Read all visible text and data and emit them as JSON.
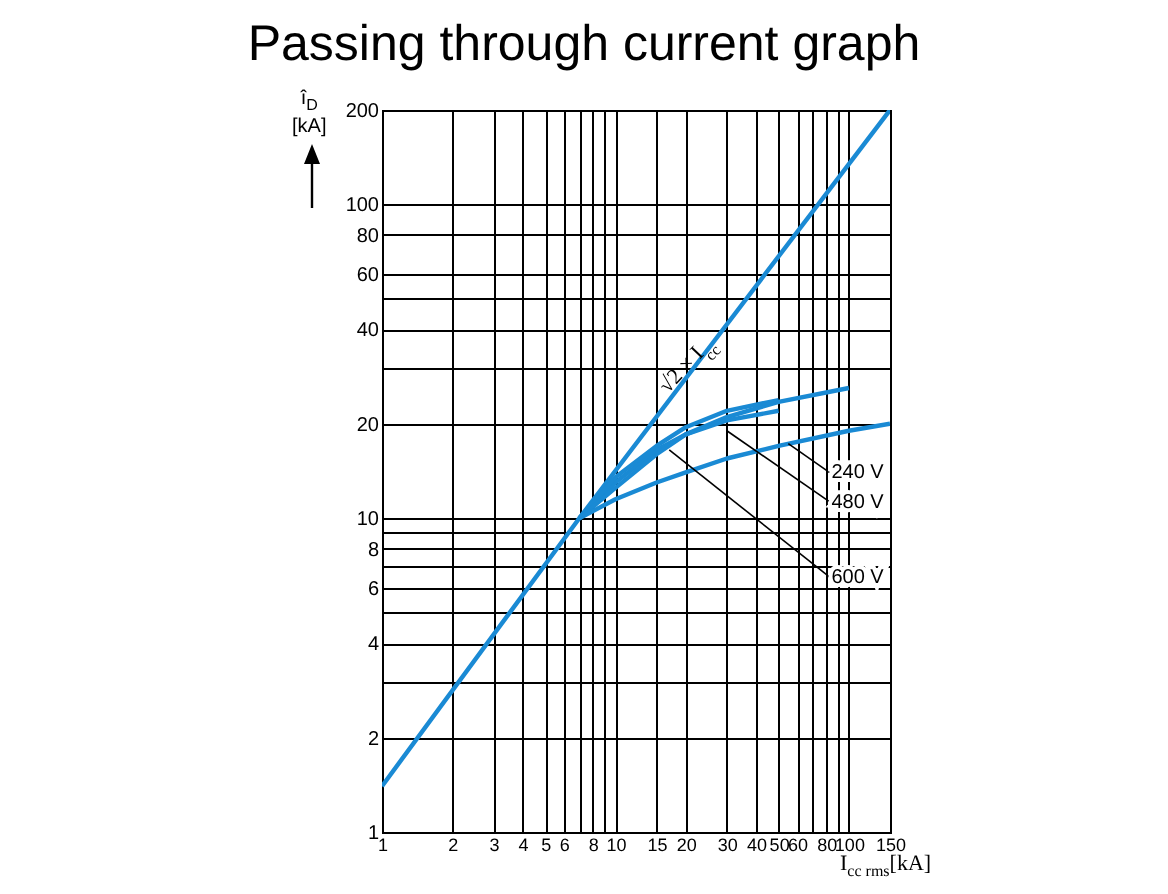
{
  "chart_data": {
    "type": "line",
    "title": "Passing through current graph",
    "xlabel": "I$_{cc rms}$[kA]",
    "ylabel": "î$_{D}$ [kA]",
    "log": "xy",
    "grid": true,
    "line_style": "solid",
    "marker": "none",
    "xlim": [
      1,
      150
    ],
    "ylim": [
      1,
      200
    ],
    "xticks": [
      1,
      2,
      3,
      4,
      5,
      6,
      {
        "value": 7,
        "label": null
      },
      8,
      {
        "value": 9,
        "label": null
      },
      10,
      15,
      20,
      30,
      40,
      50,
      60,
      {
        "value": 70,
        "label": null
      },
      80,
      {
        "value": 90,
        "label": null
      },
      100,
      150
    ],
    "yticks": [
      1,
      2,
      {
        "value": 3,
        "label": null
      },
      4,
      {
        "value": 5,
        "label": null
      },
      6,
      {
        "value": 7,
        "label": null
      },
      8,
      {
        "value": 9,
        "label": null
      },
      10,
      20,
      {
        "value": 30,
        "label": null
      },
      40,
      {
        "value": 50,
        "label": null
      },
      60,
      80,
      100,
      200
    ],
    "series": [
      {
        "color": "#1a8ad4",
        "x": [
          1,
          7,
          150
        ],
        "values": [
          1.4,
          10,
          200
        ]
      },
      {
        "color": "#1a8ad4",
        "x": [
          7,
          10,
          15,
          20,
          30,
          50,
          100
        ],
        "values": [
          10,
          13,
          16.5,
          18.5,
          21,
          23.5,
          26
        ]
      },
      {
        "color": "#1a8ad4",
        "x": [
          7,
          10,
          15,
          20,
          30,
          50
        ],
        "values": [
          10,
          13.5,
          17,
          19.5,
          22,
          23.8
        ]
      },
      {
        "color": "#1a8ad4",
        "x": [
          7,
          10,
          15,
          20,
          30,
          50
        ],
        "values": [
          10,
          12.5,
          16,
          18.5,
          20.5,
          22
        ]
      },
      {
        "color": "#1a8ad4",
        "x": [
          7,
          10,
          15,
          20,
          30,
          50,
          100,
          150
        ],
        "values": [
          10,
          11.5,
          13,
          14,
          15.5,
          17,
          19,
          20
        ]
      }
    ],
    "annotations": [
      {
        "text": "√2 × I$_{cc}$",
        "x": 22,
        "y": 29
      },
      {
        "text": "240 V",
        "x": 55,
        "y": 17.3
      },
      {
        "text": "480 V",
        "x": 30,
        "y": 19
      },
      {
        "text": "600 V",
        "x": 17,
        "y": 16.5
      }
    ]
  }
}
